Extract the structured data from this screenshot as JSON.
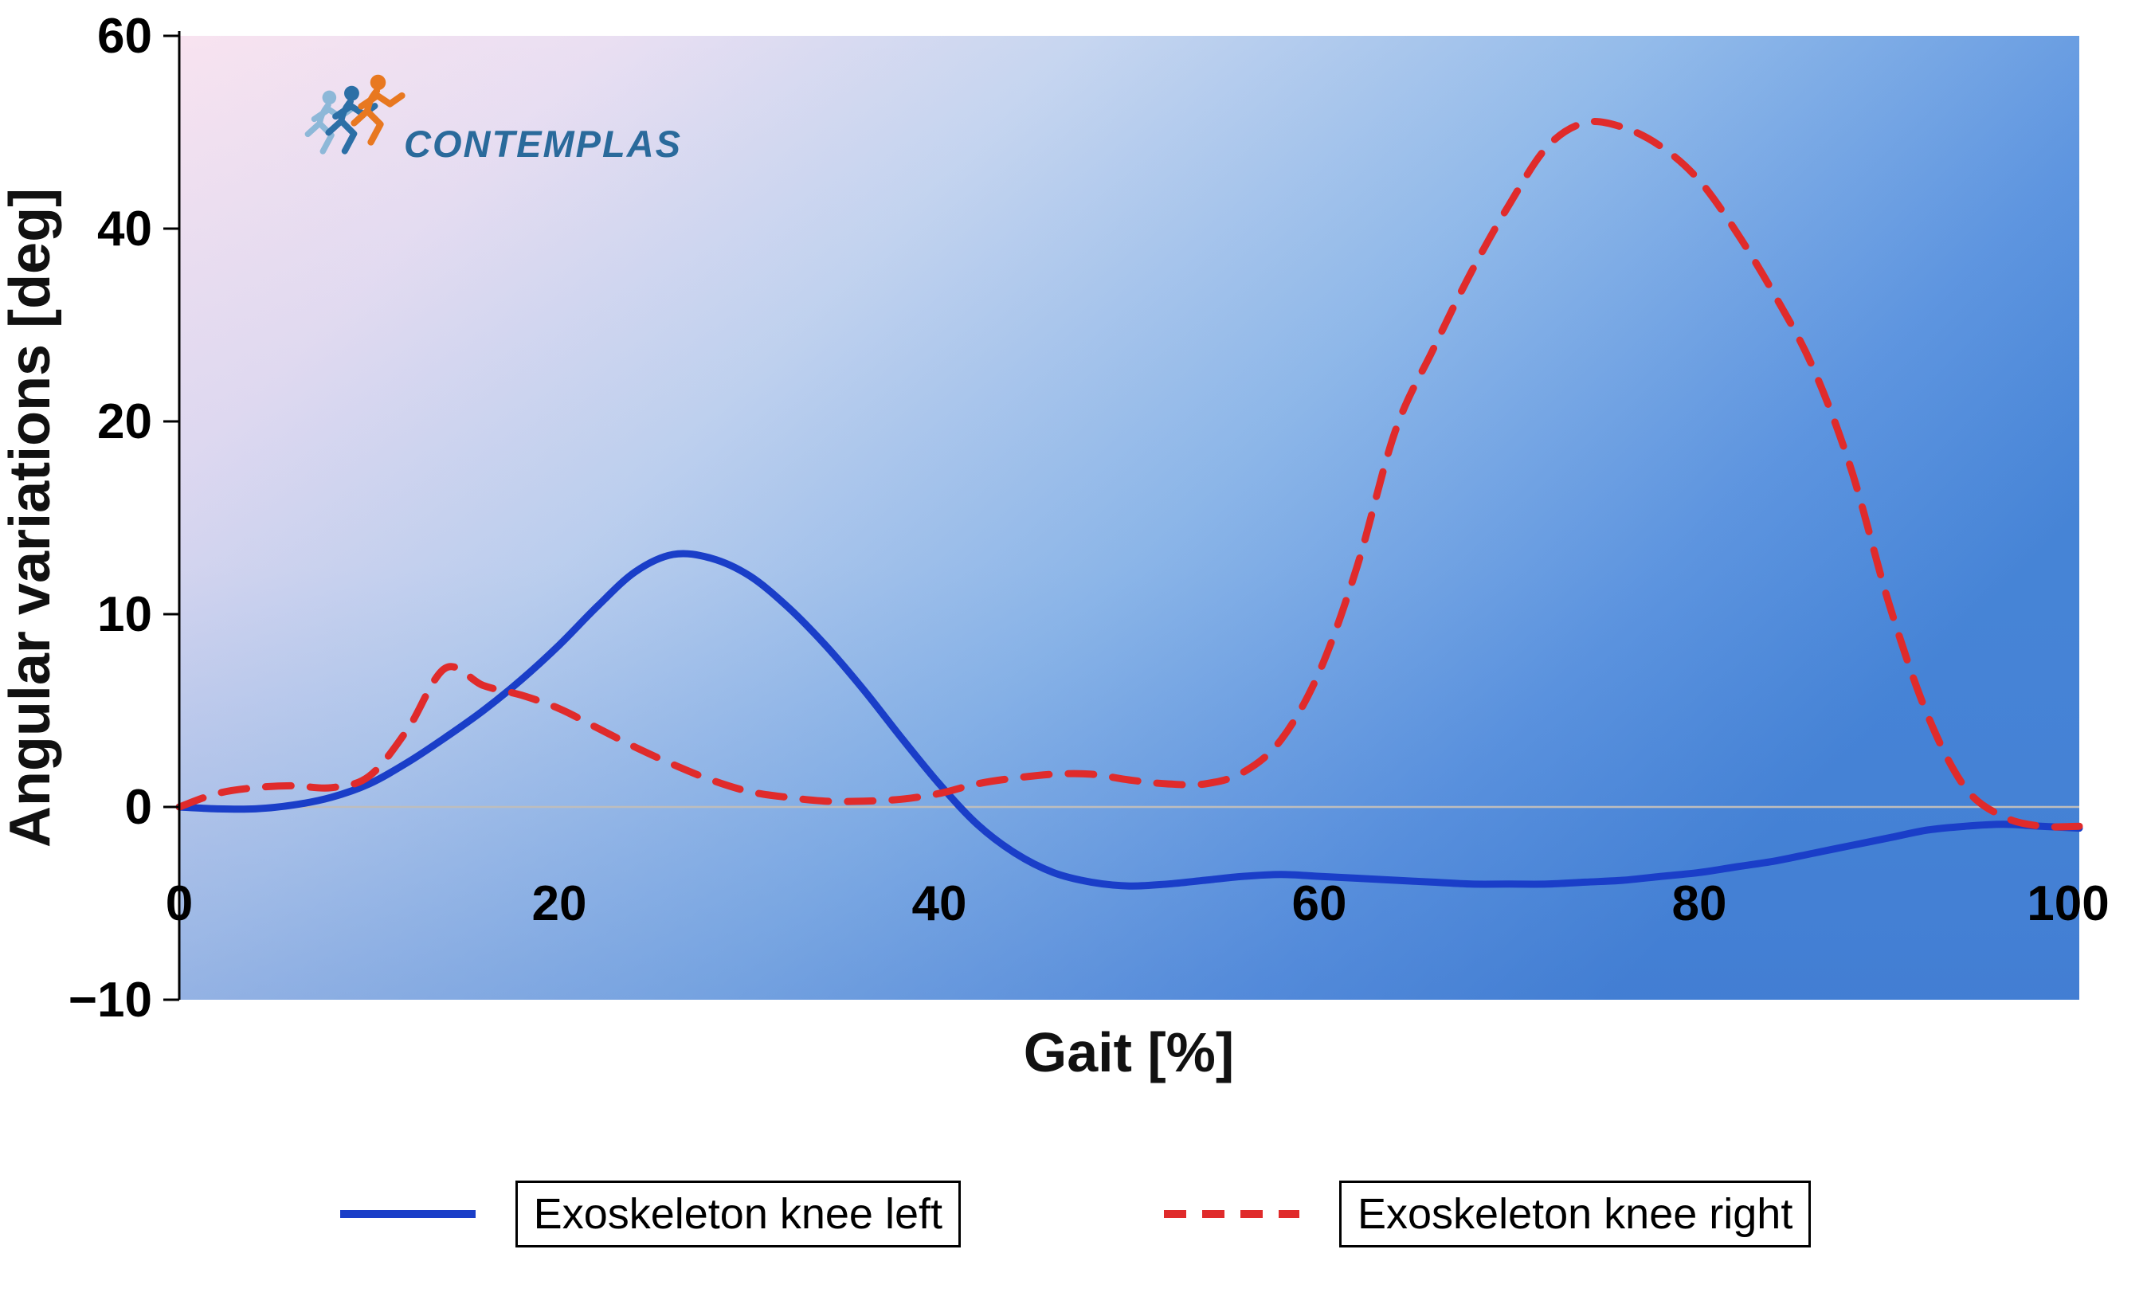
{
  "chart_data": {
    "type": "line",
    "title": "",
    "xlabel": "Gait [%]",
    "ylabel": "Angular variations [deg]",
    "x_ticks": [
      0,
      20,
      40,
      60,
      80,
      100
    ],
    "y_ticks": [
      -10,
      0,
      10,
      20,
      40,
      60
    ],
    "y_axis_scale_note": "labeled y ticks are equally spaced (non-linear spacing of values above 20)",
    "xlim": [
      0,
      100
    ],
    "ylim": [
      -10,
      60
    ],
    "grid": "single light horizontal line at y=0",
    "legend_position": "bottom",
    "background_gradient": [
      "#f8e3f0",
      "#c7d6f0",
      "#4684d6"
    ],
    "x": [
      0,
      2,
      4,
      6,
      8,
      10,
      12,
      14,
      16,
      18,
      20,
      22,
      24,
      26,
      28,
      30,
      32,
      34,
      36,
      38,
      40,
      42,
      44,
      46,
      48,
      50,
      52,
      54,
      56,
      58,
      60,
      62,
      64,
      66,
      68,
      70,
      72,
      74,
      76,
      78,
      80,
      82,
      84,
      86,
      88,
      90,
      92,
      94,
      96,
      98,
      100
    ],
    "series": [
      {
        "name": "Exoskeleton knee left",
        "style": "solid",
        "color": "#1a3ec8",
        "values": [
          0,
          -0.1,
          -0.1,
          0.1,
          0.5,
          1.2,
          2.3,
          3.6,
          5.0,
          6.6,
          8.4,
          10.4,
          12.2,
          13.1,
          12.9,
          12.0,
          10.4,
          8.4,
          6.1,
          3.6,
          1.2,
          -0.9,
          -2.4,
          -3.4,
          -3.9,
          -4.1,
          -4.0,
          -3.8,
          -3.6,
          -3.5,
          -3.6,
          -3.7,
          -3.8,
          -3.9,
          -4.0,
          -4.0,
          -4.0,
          -3.9,
          -3.8,
          -3.6,
          -3.4,
          -3.1,
          -2.8,
          -2.4,
          -2.0,
          -1.6,
          -1.2,
          -1.0,
          -0.9,
          -1.0,
          -1.1
        ]
      },
      {
        "name": "Exoskeleton knee right",
        "style": "dashed",
        "color": "#e02b2b",
        "values": [
          0,
          0.7,
          1.0,
          1.1,
          1.0,
          1.6,
          4.0,
          7.2,
          6.3,
          5.8,
          5.1,
          4.1,
          3.1,
          2.2,
          1.4,
          0.8,
          0.5,
          0.3,
          0.3,
          0.4,
          0.7,
          1.2,
          1.5,
          1.7,
          1.7,
          1.4,
          1.2,
          1.2,
          1.8,
          3.5,
          7.0,
          12.5,
          19.5,
          27.5,
          35.5,
          42.5,
          48.5,
          51.0,
          50.5,
          48.5,
          45.0,
          39.5,
          33.0,
          25.5,
          17.5,
          10.5,
          4.8,
          1.0,
          -0.5,
          -1.0,
          -1.0
        ]
      }
    ]
  },
  "logo": {
    "text": "CONTEMPLAS",
    "color": "#2a6a9b",
    "icon": "running-figures-icon",
    "icon_colors": [
      "#8db8d8",
      "#2c6fa6",
      "#e87820"
    ]
  }
}
